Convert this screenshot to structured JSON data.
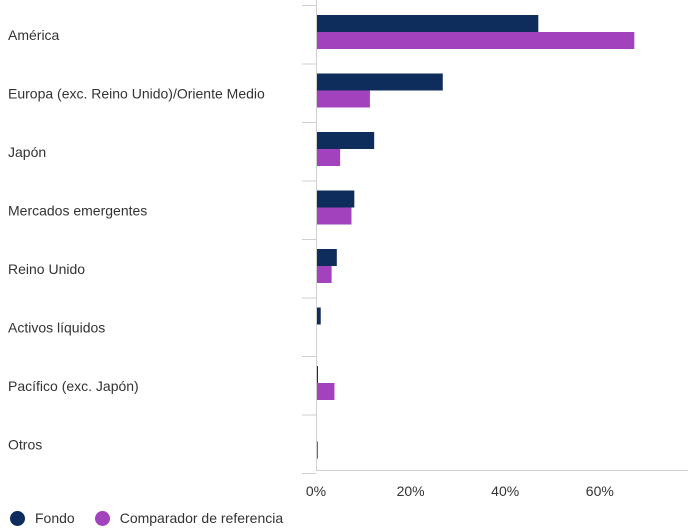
{
  "chart_data": {
    "type": "bar",
    "orientation": "horizontal",
    "categories": [
      "América",
      "Europa (exc. Reino Unido)/Oriente Medio",
      "Japón",
      "Mercados emergentes",
      "Reino Unido",
      "Activos líquidos",
      "Pacífico (exc. Japón)",
      "Otros"
    ],
    "series": [
      {
        "name": "Fondo",
        "color": "#0f2d5c",
        "values": [
          47.0,
          26.8,
          12.3,
          8.1,
          4.4,
          1.0,
          0.4,
          0.0
        ]
      },
      {
        "name": "Comparador de referencia",
        "color": "#a342bd",
        "values": [
          67.3,
          11.4,
          5.1,
          7.5,
          3.3,
          0.0,
          3.9,
          0.4
        ]
      }
    ],
    "xlim": [
      0,
      78
    ],
    "xticks": [
      0,
      20,
      40,
      60
    ],
    "xtick_labels": [
      "0%",
      "20%",
      "40%",
      "60%"
    ],
    "legend_position": "bottom-left",
    "grid": false
  }
}
